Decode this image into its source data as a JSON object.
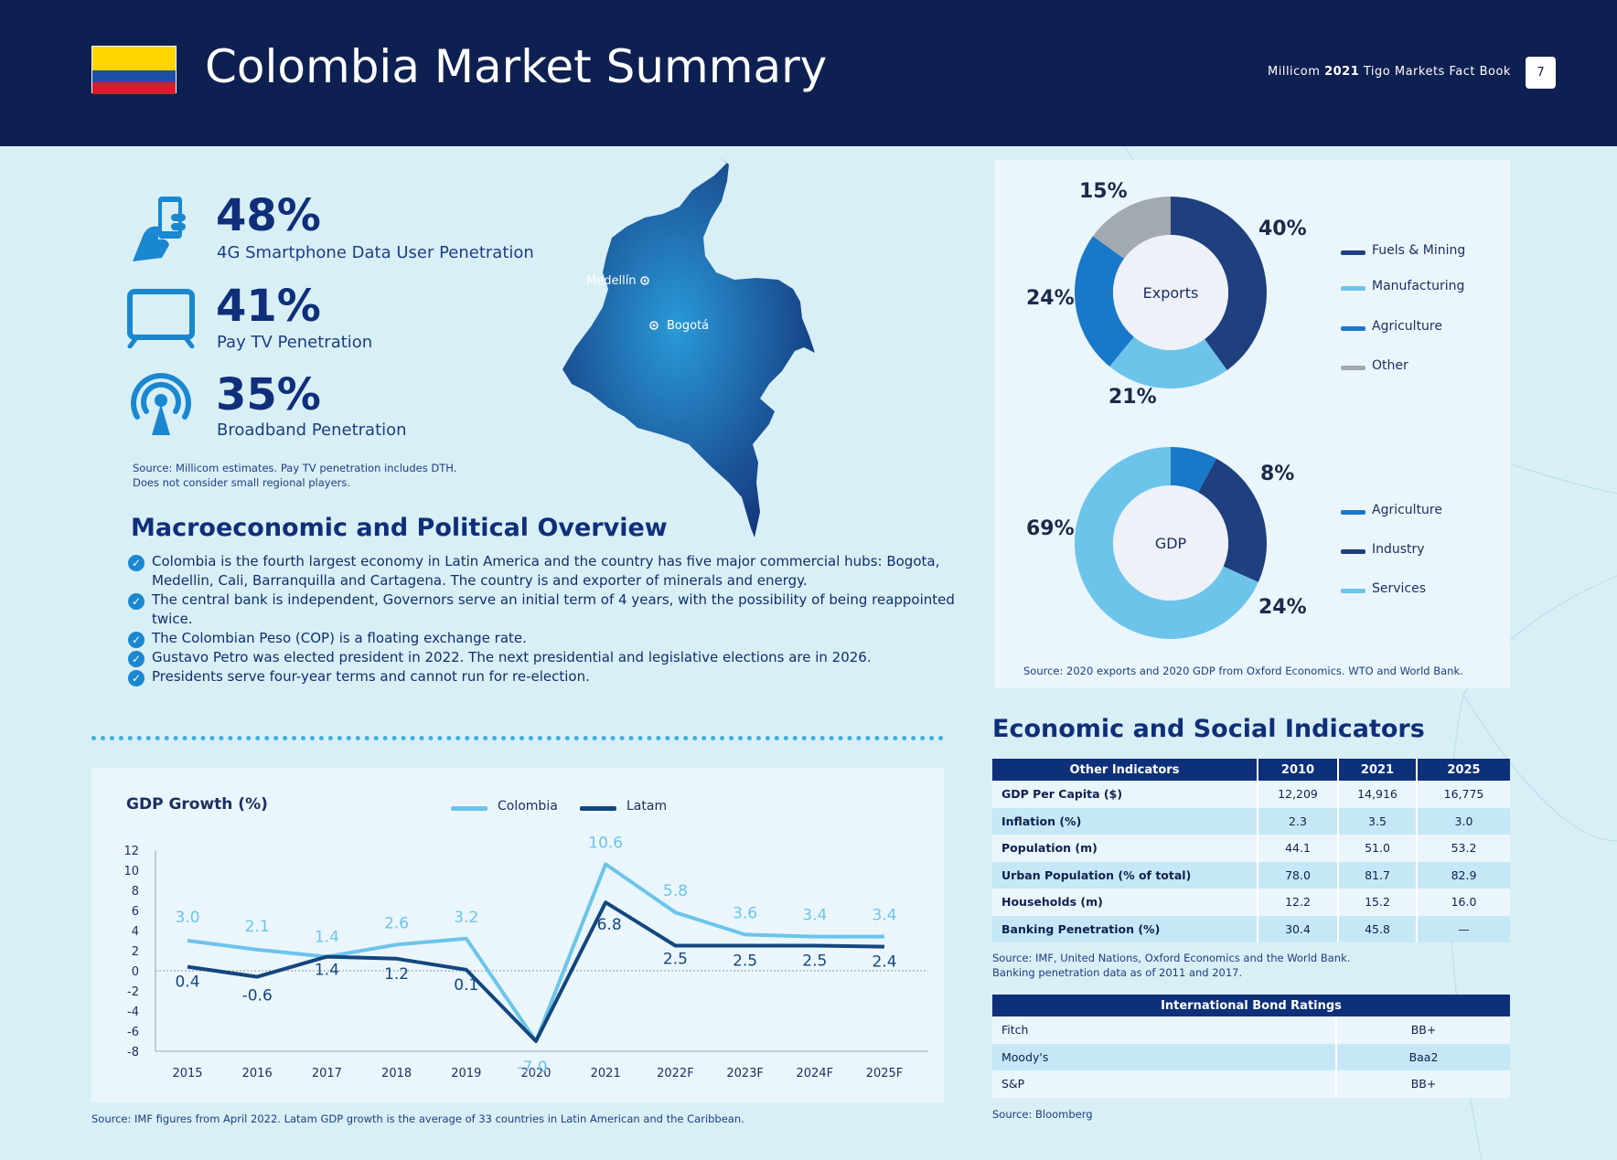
{
  "header": {
    "title": "Colombia Market Summary",
    "book_prefix": "Millicom ",
    "book_year": "2021",
    "book_suffix": " Tigo Markets Fact Book",
    "page_number": "7",
    "flag_colors": [
      "#ffd400",
      "#1b4fa8",
      "#d21f2b"
    ]
  },
  "kpis": [
    {
      "value": "48%",
      "label": "4G Smartphone Data User Penetration",
      "icon": "smartphone-hand-icon"
    },
    {
      "value": "41%",
      "label": "Pay TV Penetration",
      "icon": "tv-icon"
    },
    {
      "value": "35%",
      "label": "Broadband Penetration",
      "icon": "broadcast-antenna-icon"
    }
  ],
  "kpi_source": [
    "Source: Millicom estimates. Pay TV penetration includes DTH.",
    "Does not consider small regional players."
  ],
  "map": {
    "cities": [
      "Medellín",
      "Bogotá"
    ]
  },
  "macro": {
    "title": "Macroeconomic and Political Overview",
    "bullets": [
      "Colombia is the fourth largest economy in Latin America and the country has five major commercial hubs: Bogota, Medellin, Cali, Barranquilla and Cartagena. The country is and exporter of minerals and energy.",
      "The central bank is independent, Governors serve an initial term of 4 years, with the possibility of being reappointed twice.",
      "The Colombian Peso (COP) is a floating exchange rate.",
      "Gustavo Petro was elected president in 2022. The next presidential and legislative elections are in 2026.",
      "Presidents serve four-year terms and cannot run for re-election."
    ]
  },
  "chart_data": [
    {
      "type": "pie",
      "title": "Exports",
      "slices": [
        {
          "label": "Fuels & Mining",
          "value": 40,
          "label_text": "40%",
          "color": "#1f3f7f"
        },
        {
          "label": "Manufacturing",
          "value": 21,
          "label_text": "21%",
          "color": "#6cc4ea"
        },
        {
          "label": "Agriculture",
          "value": 24,
          "label_text": "24%",
          "color": "#1978c8"
        },
        {
          "label": "Other",
          "value": 15,
          "label_text": "15%",
          "color": "#a3a9b0"
        }
      ],
      "legend": [
        "Fuels & Mining",
        "Manufacturing",
        "Agriculture",
        "Other"
      ]
    },
    {
      "type": "pie",
      "title": "GDP",
      "slices": [
        {
          "label": "Agriculture",
          "value": 8,
          "label_text": "8%",
          "color": "#1978c8"
        },
        {
          "label": "Industry",
          "value": 24,
          "label_text": "24%",
          "color": "#1f3f7f"
        },
        {
          "label": "Services",
          "value": 69,
          "label_text": "69%",
          "color": "#6cc4ea"
        }
      ],
      "legend": [
        "Agriculture",
        "Industry",
        "Services"
      ]
    },
    {
      "type": "line",
      "title": "GDP Growth (%)",
      "categories": [
        "2015",
        "2016",
        "2017",
        "2018",
        "2019",
        "2020",
        "2021",
        "2022F",
        "2023F",
        "2024F",
        "2025F"
      ],
      "series": [
        {
          "name": "Colombia",
          "values": [
            3.0,
            2.1,
            1.4,
            2.6,
            3.2,
            -7.0,
            10.6,
            5.8,
            3.6,
            3.4,
            3.4
          ],
          "color": "#6cc4ea"
        },
        {
          "name": "Latam",
          "values": [
            0.4,
            -0.6,
            1.4,
            1.2,
            0.1,
            -7.0,
            6.8,
            2.5,
            2.5,
            2.5,
            2.4
          ],
          "color": "#14467e"
        }
      ],
      "yticks": [
        "12",
        "10",
        "8",
        "6",
        "4",
        "2",
        "0",
        "-2",
        "-4",
        "-6",
        "-8"
      ],
      "ylim": [
        -8,
        12
      ]
    }
  ],
  "donut_source": "Source: 2020 exports and 2020 GDP from Oxford Economics. WTO and World Bank.",
  "gdp_source": "Source: IMF figures from April 2022. Latam GDP growth is the average of 33 countries in Latin American and the Caribbean.",
  "indicators": {
    "title": "Economic and Social Indicators",
    "headers": [
      "Other Indicators",
      "2010",
      "2021",
      "2025"
    ],
    "rows": [
      [
        "GDP Per Capita ($)",
        "12,209",
        "14,916",
        "16,775"
      ],
      [
        "Inflation (%)",
        "2.3",
        "3.5",
        "3.0"
      ],
      [
        "Population (m)",
        "44.1",
        "51.0",
        "53.2"
      ],
      [
        "Urban Population (% of total)",
        "78.0",
        "81.7",
        "82.9"
      ],
      [
        "Households (m)",
        "12.2",
        "15.2",
        "16.0"
      ],
      [
        "Banking Penetration (%)",
        "30.4",
        "45.8",
        "—"
      ]
    ],
    "source": [
      "Source: IMF, United Nations, Oxford Economics and the World Bank.",
      "Banking penetration data as of 2011 and 2017."
    ]
  },
  "bonds": {
    "header": "International Bond Ratings",
    "rows": [
      [
        "Fitch",
        "BB+"
      ],
      [
        "Moody's",
        "Baa2"
      ],
      [
        "S&P",
        "BB+"
      ]
    ],
    "source": "Source: Bloomberg"
  }
}
